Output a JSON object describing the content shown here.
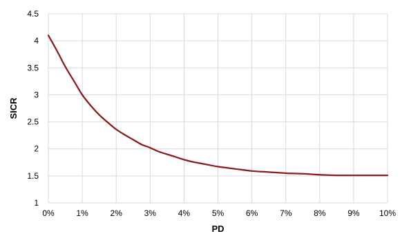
{
  "chart_data": {
    "type": "line",
    "title": "",
    "xlabel": "PD",
    "ylabel": "SICR",
    "xlim": [
      0,
      0.1
    ],
    "ylim": [
      1,
      4.5
    ],
    "x_ticks": [
      0,
      0.01,
      0.02,
      0.03,
      0.04,
      0.05,
      0.06,
      0.07,
      0.08,
      0.09,
      0.1
    ],
    "x_tick_labels": [
      "0%",
      "1%",
      "2%",
      "3%",
      "4%",
      "5%",
      "6%",
      "7%",
      "8%",
      "9%",
      "10%"
    ],
    "y_ticks": [
      1,
      1.5,
      2,
      2.5,
      3,
      3.5,
      4,
      4.5
    ],
    "y_tick_labels": [
      "1",
      "1.5",
      "2",
      "2.5",
      "3",
      "3.5",
      "4",
      "4.5"
    ],
    "grid": true,
    "legend": "none",
    "series": [
      {
        "color": "#8b1a1a",
        "x": [
          0,
          0.0025,
          0.005,
          0.0075,
          0.01,
          0.0125,
          0.015,
          0.0175,
          0.02,
          0.0225,
          0.025,
          0.0275,
          0.03,
          0.0325,
          0.035,
          0.0375,
          0.04,
          0.0425,
          0.045,
          0.0475,
          0.05,
          0.055,
          0.06,
          0.065,
          0.07,
          0.075,
          0.08,
          0.085,
          0.09,
          0.095,
          0.1
        ],
        "y": [
          4.1,
          3.82,
          3.52,
          3.26,
          3.0,
          2.8,
          2.63,
          2.49,
          2.36,
          2.26,
          2.17,
          2.08,
          2.02,
          1.95,
          1.9,
          1.85,
          1.8,
          1.76,
          1.73,
          1.7,
          1.67,
          1.63,
          1.59,
          1.57,
          1.55,
          1.54,
          1.52,
          1.51,
          1.51,
          1.51,
          1.51
        ]
      }
    ]
  }
}
